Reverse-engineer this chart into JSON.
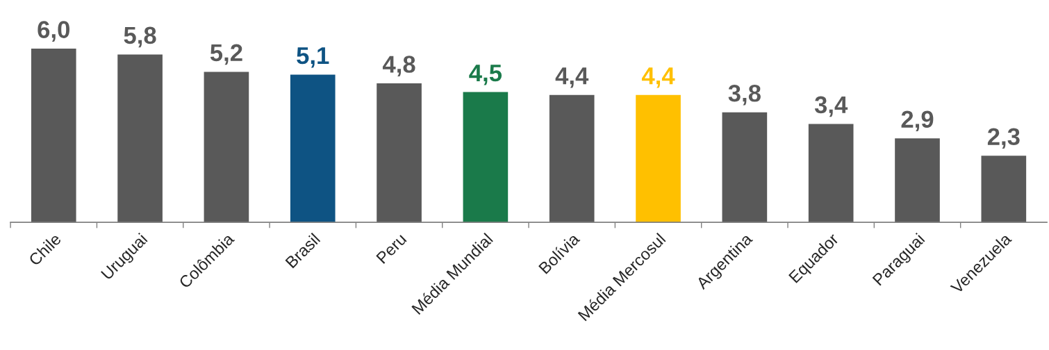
{
  "chart_data": {
    "type": "bar",
    "categories": [
      "Chile",
      "Uruguai",
      "Colômbia",
      "Brasil",
      "Peru",
      "Média Mundial",
      "Bolívia",
      "Média Mercosul",
      "Argentina",
      "Equador",
      "Paraguai",
      "Venezuela"
    ],
    "values": [
      6.0,
      5.8,
      5.2,
      5.1,
      4.8,
      4.5,
      4.4,
      4.4,
      3.8,
      3.4,
      2.9,
      2.3
    ],
    "value_labels": [
      "6,0",
      "5,8",
      "5,2",
      "5,1",
      "4,8",
      "4,5",
      "4,4",
      "4,4",
      "3,8",
      "3,4",
      "2,9",
      "2,3"
    ],
    "colors": [
      "#595959",
      "#595959",
      "#595959",
      "#0e5383",
      "#595959",
      "#1a7a4a",
      "#595959",
      "#ffc000",
      "#595959",
      "#595959",
      "#595959",
      "#595959"
    ],
    "grid": false
  }
}
